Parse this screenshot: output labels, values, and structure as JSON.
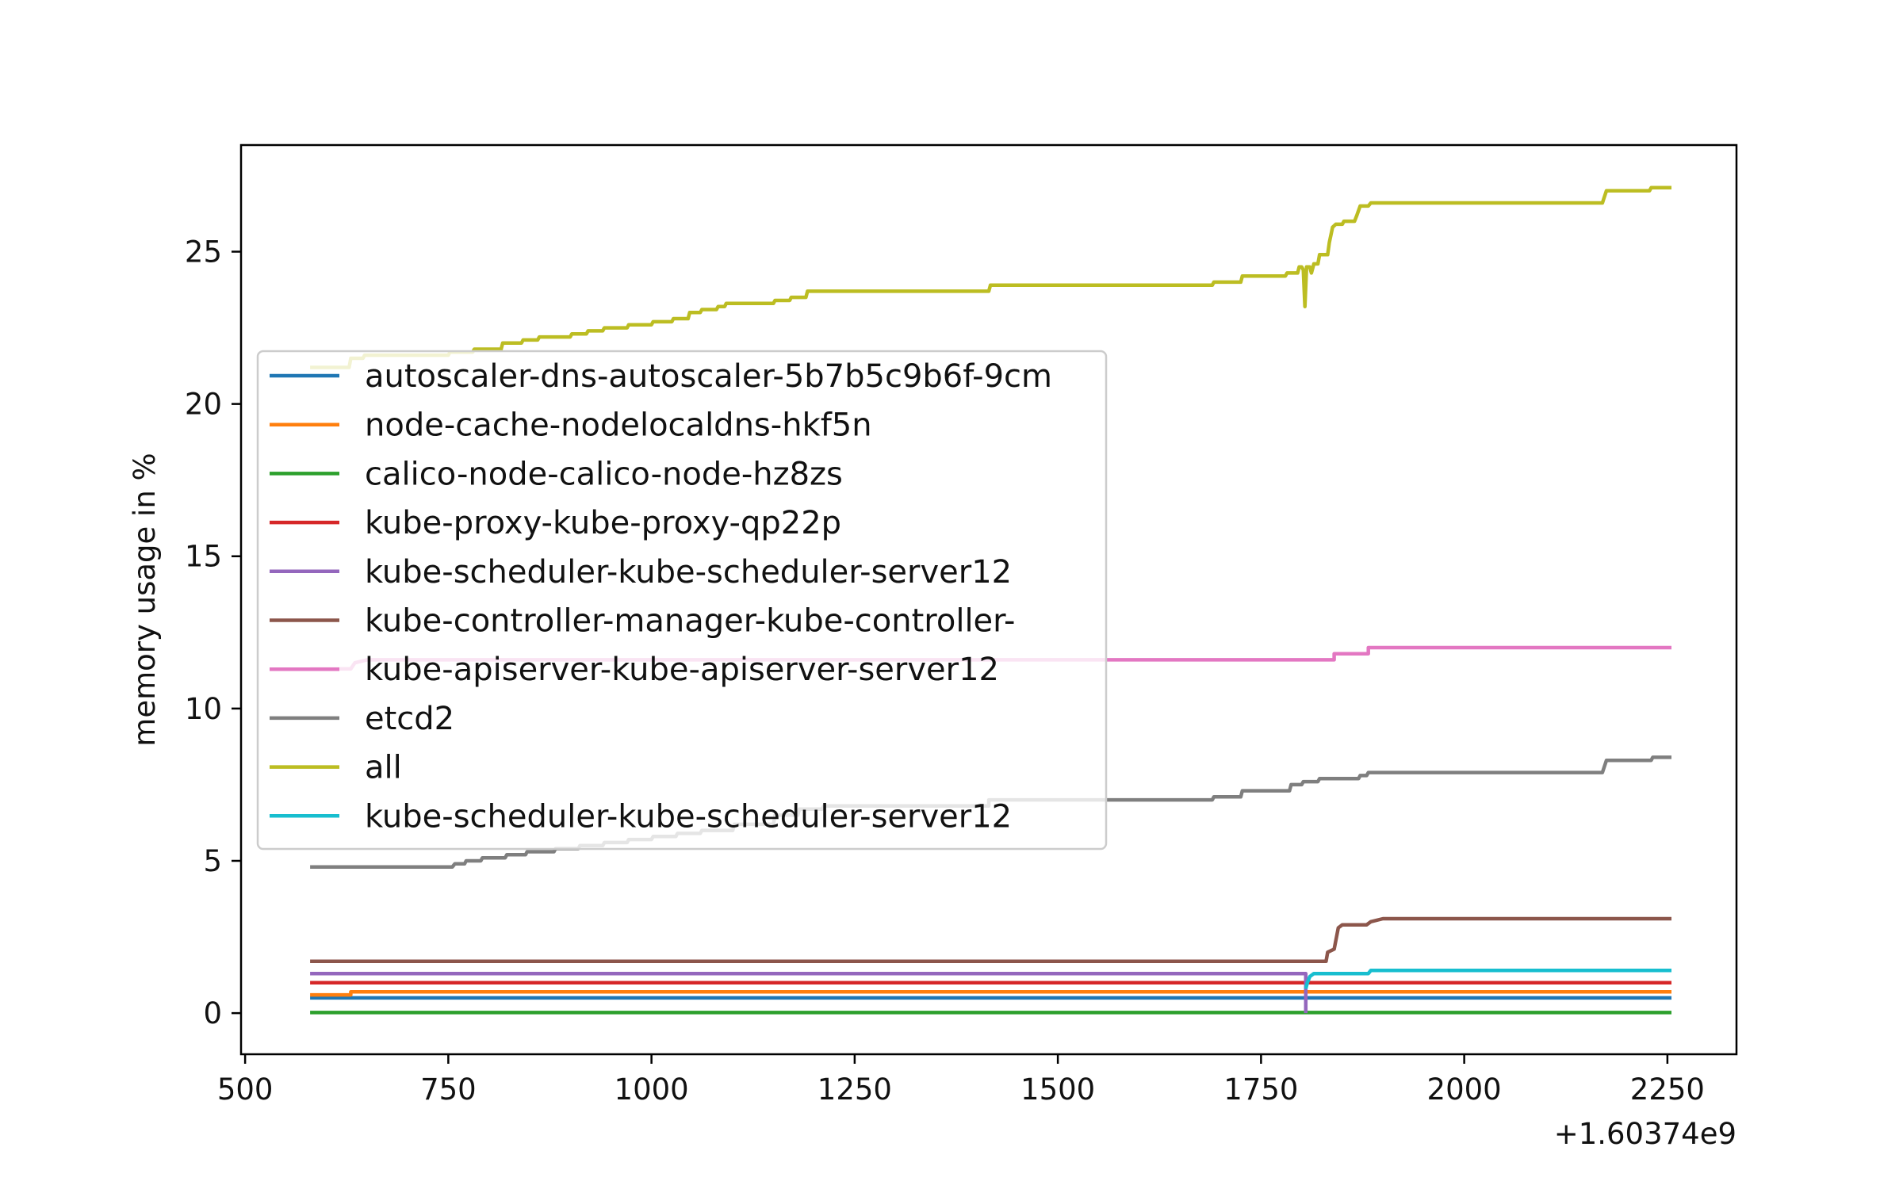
{
  "chart_data": {
    "type": "line",
    "title": "",
    "xlabel": "",
    "ylabel": "memory usage in %",
    "x_offset_label": "+1.60374e9",
    "xlim": [
      495,
      2335
    ],
    "ylim": [
      -1.35,
      28.5
    ],
    "xticks": [
      500,
      750,
      1000,
      1250,
      1500,
      1750,
      2000,
      2250
    ],
    "xtick_labels": [
      "500",
      "750",
      "1000",
      "1250",
      "1500",
      "1750",
      "2000",
      "2250"
    ],
    "yticks": [
      0,
      5,
      10,
      15,
      20,
      25
    ],
    "ytick_labels": [
      "0",
      "5",
      "10",
      "15",
      "20",
      "25"
    ],
    "grid": false,
    "legend_position": "center-left",
    "series": [
      {
        "name": "autoscaler-dns-autoscaler-5b7b5c9b6f-9cm",
        "color": "#1f77b4",
        "points": [
          [
            580,
            0.5
          ],
          [
            2255,
            0.5
          ]
        ]
      },
      {
        "name": "node-cache-nodelocaldns-hkf5n",
        "color": "#ff7f0e",
        "points": [
          [
            580,
            0.6
          ],
          [
            630,
            0.6
          ],
          [
            630,
            0.7
          ],
          [
            2255,
            0.7
          ]
        ]
      },
      {
        "name": "calico-node-calico-node-hz8zs",
        "color": "#2ca02c",
        "points": [
          [
            580,
            0.02
          ],
          [
            2255,
            0.02
          ]
        ]
      },
      {
        "name": "kube-proxy-kube-proxy-qp22p",
        "color": "#d62728",
        "points": [
          [
            580,
            1.0
          ],
          [
            2255,
            1.0
          ]
        ]
      },
      {
        "name": "kube-scheduler-kube-scheduler-server12",
        "color": "#9467bd",
        "points": [
          [
            580,
            1.3
          ],
          [
            1805,
            1.3
          ],
          [
            1805,
            0.0
          ]
        ]
      },
      {
        "name": "kube-controller-manager-kube-controller-",
        "color": "#8c564b",
        "points": [
          [
            580,
            1.7
          ],
          [
            1830,
            1.7
          ],
          [
            1832,
            2.0
          ],
          [
            1840,
            2.1
          ],
          [
            1845,
            2.8
          ],
          [
            1850,
            2.9
          ],
          [
            1880,
            2.9
          ],
          [
            1885,
            3.0
          ],
          [
            1900,
            3.1
          ],
          [
            2255,
            3.1
          ]
        ]
      },
      {
        "name": "kube-apiserver-kube-apiserver-server12",
        "color": "#e377c2",
        "points": [
          [
            580,
            11.3
          ],
          [
            630,
            11.3
          ],
          [
            635,
            11.5
          ],
          [
            650,
            11.6
          ],
          [
            1840,
            11.6
          ],
          [
            1840,
            11.8
          ],
          [
            1882,
            11.8
          ],
          [
            1882,
            12.0
          ],
          [
            2255,
            12.0
          ]
        ]
      },
      {
        "name": "etcd2",
        "color": "#7f7f7f",
        "points": [
          [
            580,
            4.8
          ],
          [
            755,
            4.8
          ],
          [
            758,
            4.9
          ],
          [
            770,
            4.9
          ],
          [
            772,
            5.0
          ],
          [
            790,
            5.0
          ],
          [
            792,
            5.1
          ],
          [
            820,
            5.1
          ],
          [
            822,
            5.2
          ],
          [
            845,
            5.2
          ],
          [
            847,
            5.3
          ],
          [
            880,
            5.3
          ],
          [
            882,
            5.4
          ],
          [
            910,
            5.4
          ],
          [
            912,
            5.5
          ],
          [
            940,
            5.5
          ],
          [
            942,
            5.6
          ],
          [
            970,
            5.6
          ],
          [
            972,
            5.7
          ],
          [
            1000,
            5.7
          ],
          [
            1002,
            5.8
          ],
          [
            1030,
            5.8
          ],
          [
            1032,
            5.9
          ],
          [
            1060,
            5.9
          ],
          [
            1062,
            6.0
          ],
          [
            1100,
            6.0
          ],
          [
            1102,
            6.2
          ],
          [
            1150,
            6.2
          ],
          [
            1152,
            6.5
          ],
          [
            1180,
            6.5
          ],
          [
            1182,
            6.7
          ],
          [
            1210,
            6.7
          ],
          [
            1212,
            6.8
          ],
          [
            1415,
            6.8
          ],
          [
            1415,
            7.0
          ],
          [
            1690,
            7.0
          ],
          [
            1692,
            7.1
          ],
          [
            1725,
            7.1
          ],
          [
            1727,
            7.3
          ],
          [
            1785,
            7.3
          ],
          [
            1787,
            7.5
          ],
          [
            1800,
            7.5
          ],
          [
            1802,
            7.6
          ],
          [
            1820,
            7.6
          ],
          [
            1822,
            7.7
          ],
          [
            1870,
            7.7
          ],
          [
            1872,
            7.8
          ],
          [
            1880,
            7.8
          ],
          [
            1882,
            7.9
          ],
          [
            2170,
            7.9
          ],
          [
            2175,
            8.3
          ],
          [
            2230,
            8.3
          ],
          [
            2232,
            8.4
          ],
          [
            2255,
            8.4
          ]
        ]
      },
      {
        "name": "all",
        "color": "#bcbd22",
        "points": [
          [
            580,
            21.2
          ],
          [
            628,
            21.2
          ],
          [
            630,
            21.5
          ],
          [
            645,
            21.5
          ],
          [
            647,
            21.6
          ],
          [
            750,
            21.6
          ],
          [
            752,
            21.7
          ],
          [
            780,
            21.7
          ],
          [
            782,
            21.8
          ],
          [
            815,
            21.8
          ],
          [
            817,
            22.0
          ],
          [
            840,
            22.0
          ],
          [
            842,
            22.1
          ],
          [
            860,
            22.1
          ],
          [
            862,
            22.2
          ],
          [
            900,
            22.2
          ],
          [
            902,
            22.3
          ],
          [
            920,
            22.3
          ],
          [
            922,
            22.4
          ],
          [
            940,
            22.4
          ],
          [
            942,
            22.5
          ],
          [
            970,
            22.5
          ],
          [
            972,
            22.6
          ],
          [
            1000,
            22.6
          ],
          [
            1002,
            22.7
          ],
          [
            1025,
            22.7
          ],
          [
            1027,
            22.8
          ],
          [
            1045,
            22.8
          ],
          [
            1047,
            23.0
          ],
          [
            1060,
            23.0
          ],
          [
            1062,
            23.1
          ],
          [
            1080,
            23.1
          ],
          [
            1082,
            23.2
          ],
          [
            1090,
            23.2
          ],
          [
            1092,
            23.3
          ],
          [
            1150,
            23.3
          ],
          [
            1152,
            23.4
          ],
          [
            1170,
            23.4
          ],
          [
            1172,
            23.5
          ],
          [
            1190,
            23.5
          ],
          [
            1192,
            23.7
          ],
          [
            1415,
            23.7
          ],
          [
            1417,
            23.9
          ],
          [
            1690,
            23.9
          ],
          [
            1692,
            24.0
          ],
          [
            1725,
            24.0
          ],
          [
            1727,
            24.2
          ],
          [
            1780,
            24.2
          ],
          [
            1782,
            24.3
          ],
          [
            1795,
            24.3
          ],
          [
            1797,
            24.5
          ],
          [
            1800,
            24.5
          ],
          [
            1802,
            24.4
          ],
          [
            1804,
            23.2
          ],
          [
            1806,
            24.5
          ],
          [
            1810,
            24.5
          ],
          [
            1812,
            24.3
          ],
          [
            1815,
            24.6
          ],
          [
            1820,
            24.6
          ],
          [
            1822,
            24.9
          ],
          [
            1832,
            24.9
          ],
          [
            1834,
            25.3
          ],
          [
            1838,
            25.8
          ],
          [
            1842,
            25.9
          ],
          [
            1850,
            25.9
          ],
          [
            1852,
            26.0
          ],
          [
            1865,
            26.0
          ],
          [
            1868,
            26.2
          ],
          [
            1872,
            26.5
          ],
          [
            1882,
            26.5
          ],
          [
            1885,
            26.6
          ],
          [
            2170,
            26.6
          ],
          [
            2175,
            27.0
          ],
          [
            2228,
            27.0
          ],
          [
            2230,
            27.1
          ],
          [
            2255,
            27.1
          ]
        ]
      },
      {
        "name": "kube-scheduler-kube-scheduler-server12",
        "color": "#17becf",
        "points": [
          [
            1805,
            0.8
          ],
          [
            1807,
            1.0
          ],
          [
            1810,
            1.2
          ],
          [
            1815,
            1.3
          ],
          [
            1882,
            1.3
          ],
          [
            1885,
            1.4
          ],
          [
            2255,
            1.4
          ]
        ]
      }
    ]
  }
}
